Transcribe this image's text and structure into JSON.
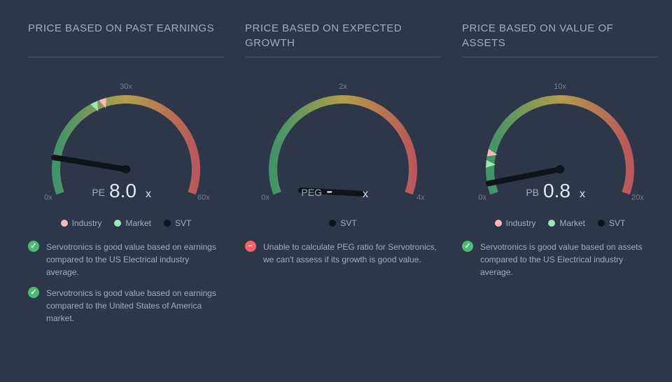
{
  "background_color": "#2d3748",
  "gauge_defaults": {
    "arc_gradient": [
      "#48bb78",
      "#ecc94b",
      "#f56565"
    ],
    "tick_color": "#718096",
    "needle_color": "#0f1419",
    "needle_width": 8,
    "radius": 100,
    "start_angle": -200,
    "end_angle": 20,
    "industry_color": "#fbb6b6",
    "market_color": "#9ae6b4",
    "svt_color": "#0f1419"
  },
  "legend_labels": {
    "industry": "Industry",
    "market": "Market",
    "svt": "SVT"
  },
  "icons": {
    "good": "✓",
    "bad": "−"
  },
  "panels": [
    {
      "title": "PRICE BASED ON PAST EARNINGS",
      "metric_label": "PE",
      "metric_value": "8.0",
      "metric_suffix": "x",
      "max": 60,
      "ticks": [
        {
          "v": 0,
          "label": "0x"
        },
        {
          "v": 30,
          "label": "30x"
        },
        {
          "v": 60,
          "label": "60x"
        }
      ],
      "needle_value": 8.0,
      "markers": {
        "industry": 25,
        "market": 23
      },
      "show_industry_market_legend": true,
      "notes": [
        {
          "type": "good",
          "text": "Servotronics is good value based on earnings compared to the US Electrical industry average."
        },
        {
          "type": "good",
          "text": "Servotronics is good value based on earnings compared to the United States of America market."
        }
      ]
    },
    {
      "title": "PRICE BASED ON EXPECTED GROWTH",
      "metric_label": "PEG",
      "metric_value": "-",
      "metric_suffix": " x",
      "max": 4,
      "ticks": [
        {
          "v": 0,
          "label": "0x"
        },
        {
          "v": 2,
          "label": "2x"
        },
        {
          "v": 4,
          "label": "4x"
        }
      ],
      "needle_value": null,
      "markers": {},
      "show_industry_market_legend": false,
      "notes": [
        {
          "type": "bad",
          "text": "Unable to calculate PEG ratio for Servotronics, we can't assess if its growth is good value."
        }
      ]
    },
    {
      "title": "PRICE BASED ON VALUE OF ASSETS",
      "metric_label": "PB",
      "metric_value": "0.8",
      "metric_suffix": "x",
      "max": 20,
      "ticks": [
        {
          "v": 0,
          "label": "0x"
        },
        {
          "v": 10,
          "label": "10x"
        },
        {
          "v": 20,
          "label": "20x"
        }
      ],
      "needle_value": 0.8,
      "markers": {
        "industry": 3.0,
        "market": 2.2
      },
      "show_industry_market_legend": true,
      "notes": [
        {
          "type": "good",
          "text": "Servotronics is good value based on assets compared to the US Electrical industry average."
        }
      ]
    }
  ]
}
